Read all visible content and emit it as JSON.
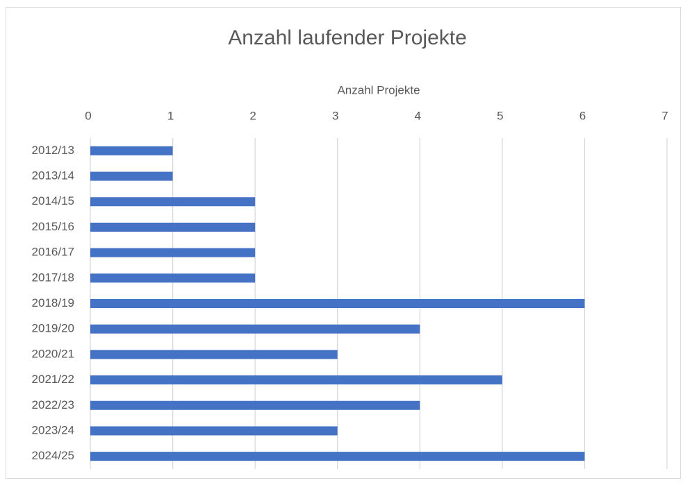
{
  "chart_data": {
    "type": "bar",
    "orientation": "horizontal",
    "title": "Anzahl laufender Projekte",
    "x_label": "Anzahl Projekte",
    "categories": [
      "2012/13",
      "2013/14",
      "2014/15",
      "2015/16",
      "2016/17",
      "2017/18",
      "2018/19",
      "2019/20",
      "2020/21",
      "2021/22",
      "2022/23",
      "2023/24",
      "2024/25"
    ],
    "values": [
      1,
      1,
      2,
      2,
      2,
      2,
      6,
      4,
      3,
      5,
      4,
      3,
      6
    ],
    "color": "#4472c4",
    "xlim": [
      0,
      7
    ],
    "xticks": [
      0,
      1,
      2,
      3,
      4,
      5,
      6,
      7
    ],
    "grid": true
  }
}
